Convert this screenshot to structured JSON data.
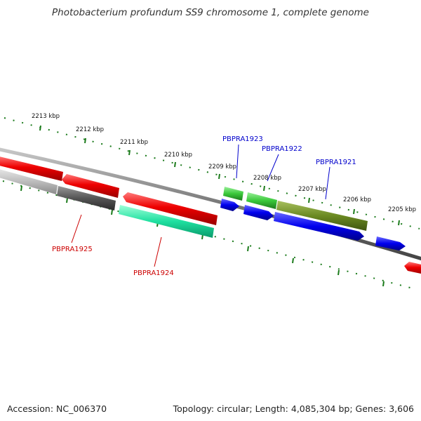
{
  "title": "Photobacterium profundum SS9 chromosome 1, complete genome",
  "footer": {
    "accession": "Accession: NC_006370",
    "summary": "Topology: circular; Length: 4,085,304 bp; Genes: 3,606"
  },
  "colors": {
    "backbone": "#7a7a7a",
    "tick": "#1a7a1a",
    "label_red": "#cc0000",
    "label_blue": "#0000cc",
    "gene_red": "#ee0000",
    "gene_grey": "#555555",
    "gene_lightgrey": "#bbbbbb",
    "gene_aqua": "#1fe0a0",
    "gene_green": "#3ac83a",
    "gene_olive": "#6b8a22",
    "gene_blue": "#0000ee"
  },
  "kbp_labels": [
    "2213 kbp",
    "2212 kbp",
    "2211 kbp",
    "2210 kbp",
    "2209 kbp",
    "2208 kbp",
    "2207 kbp",
    "2206 kbp",
    "2205 kbp"
  ],
  "genes": [
    {
      "id": "PBPRA1925",
      "color": "red"
    },
    {
      "id": "PBPRA1924",
      "color": "red"
    },
    {
      "id": "PBPRA1923",
      "color": "blue"
    },
    {
      "id": "PBPRA1922",
      "color": "blue"
    },
    {
      "id": "PBPRA1921",
      "color": "blue"
    }
  ]
}
